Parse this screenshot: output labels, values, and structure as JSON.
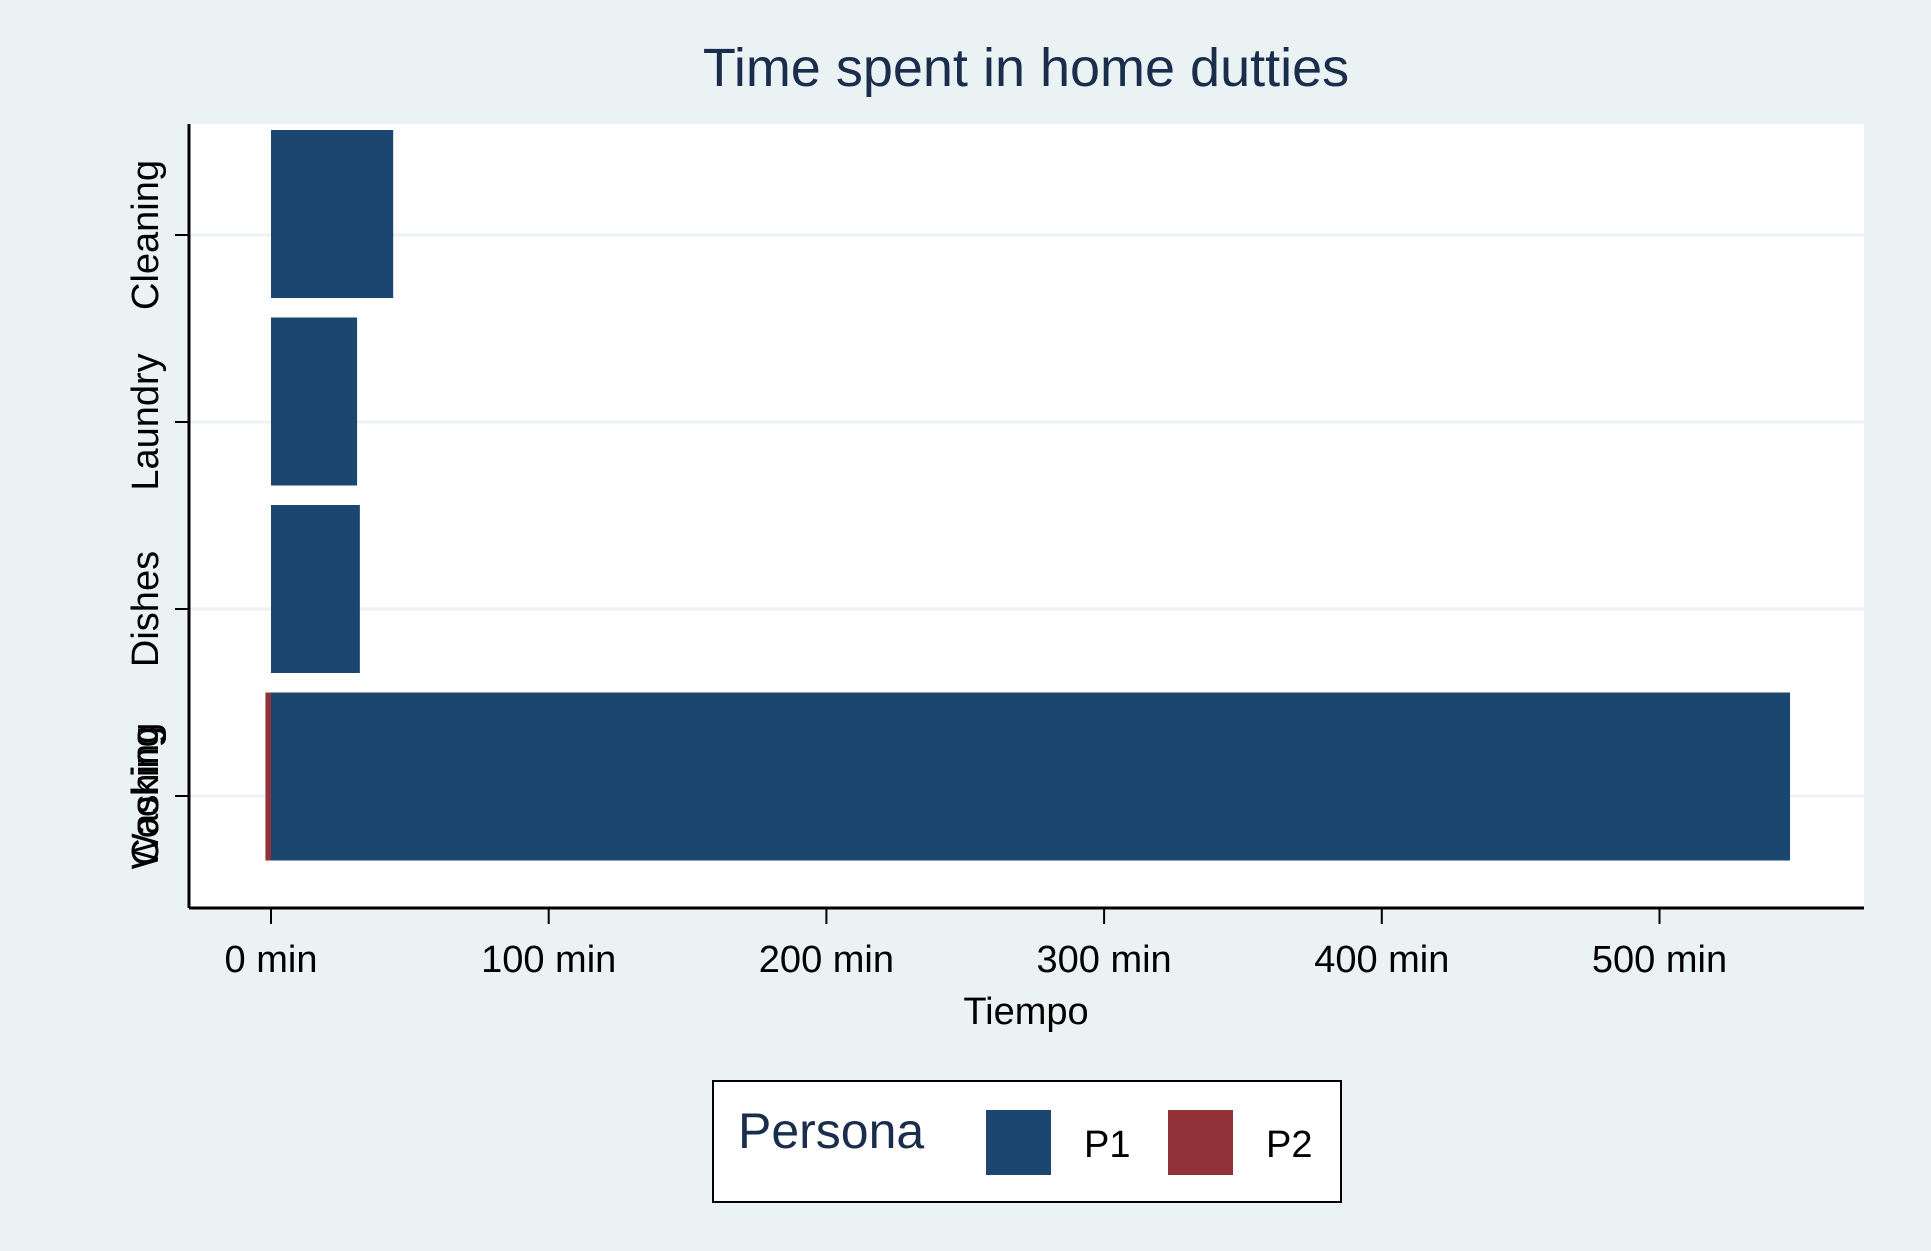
{
  "chart_data": {
    "type": "bar",
    "orientation": "horizontal",
    "stacked": true,
    "title": "Time spent in home dutties",
    "xlabel": "Tiempo",
    "ylabel": "",
    "xlim": [
      -30,
      570
    ],
    "x_ticks": [
      0,
      100,
      200,
      300,
      400,
      500
    ],
    "x_tick_labels": [
      "0 min",
      "100 min",
      "200 min",
      "300 min",
      "400 min",
      "500 min"
    ],
    "categories": [
      "Cleaning",
      "Laundry",
      "Dishes",
      "Cooking",
      "Washing"
    ],
    "series": [
      {
        "name": "P1",
        "color": "#1b4670",
        "values": [
          44,
          31,
          32,
          547,
          null
        ]
      },
      {
        "name": "P2",
        "color": "#913239",
        "values": [
          0,
          0,
          0,
          -2,
          null
        ]
      }
    ],
    "legend": {
      "title": "Persona",
      "position": "bottom",
      "entries": [
        "P1",
        "P2"
      ]
    },
    "grid": true,
    "colors": {
      "background": "#eaf2f3",
      "plot_background": "#ffffff",
      "grid": "#eaf2f3",
      "text": "#1a2d4d"
    }
  }
}
